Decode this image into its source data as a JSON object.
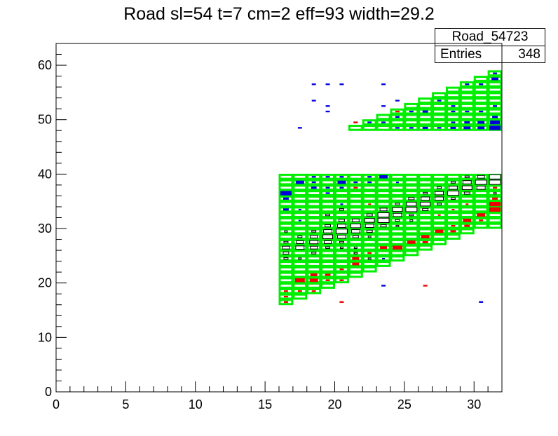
{
  "chart_data": {
    "type": "heatmap",
    "title": "Road sl=54 t=7 cm=2 eff=93 width=29.2",
    "stats_box": {
      "name": "Road_54723",
      "entries_label": "Entries",
      "entries_value": "348"
    },
    "xlim": [
      0,
      32
    ],
    "ylim": [
      0,
      64
    ],
    "x_ticks": [
      "0",
      "5",
      "10",
      "15",
      "20",
      "25",
      "30"
    ],
    "y_ticks": [
      "0",
      "10",
      "20",
      "30",
      "40",
      "50",
      "60"
    ],
    "grid": false,
    "colors": {
      "road": "#00ee00",
      "blue": "#0000dd",
      "red": "#ee0000",
      "box": "#000000"
    },
    "road_upper": {
      "y_top": 59,
      "columns": [
        {
          "x": 21,
          "y_bottom": 48
        },
        {
          "x": 22,
          "y_bottom": 48
        },
        {
          "x": 23,
          "y_bottom": 48
        },
        {
          "x": 24,
          "y_bottom": 48
        },
        {
          "x": 25,
          "y_bottom": 48
        },
        {
          "x": 26,
          "y_bottom": 48
        },
        {
          "x": 27,
          "y_bottom": 48
        },
        {
          "x": 28,
          "y_bottom": 48
        },
        {
          "x": 29,
          "y_bottom": 48
        },
        {
          "x": 30,
          "y_bottom": 48
        },
        {
          "x": 31,
          "y_bottom": 48
        }
      ],
      "column_tops": [
        50,
        51,
        52,
        53,
        54,
        55,
        56,
        57,
        58,
        59,
        60
      ]
    },
    "road_lower": {
      "column_tops": [
        40,
        40,
        40,
        40,
        40,
        40,
        40,
        40,
        40,
        40,
        40,
        40,
        40,
        40,
        40,
        40
      ],
      "column_bottoms": [
        16,
        17,
        18,
        19,
        20,
        21,
        22,
        23,
        24,
        25,
        26,
        27,
        28,
        29,
        30,
        30
      ],
      "x_start": 16
    },
    "blue_hits": [
      [
        18.5,
        56.5,
        0.3
      ],
      [
        19.5,
        56.5,
        0.3
      ],
      [
        20.5,
        56.5,
        0.3
      ],
      [
        23.5,
        56.5,
        0.3
      ],
      [
        18.5,
        53.5,
        0.3
      ],
      [
        19.5,
        52.5,
        0.3
      ],
      [
        19.5,
        51.5,
        0.3
      ],
      [
        17.5,
        48.5,
        0.3
      ],
      [
        24.5,
        53.5,
        0.3
      ],
      [
        23.5,
        52.5,
        0.3
      ],
      [
        26.5,
        51.5,
        0.4
      ],
      [
        25.5,
        51.5,
        0.3
      ],
      [
        24.5,
        50.5,
        0.3
      ],
      [
        21.5,
        49.5,
        0.3
      ],
      [
        22.5,
        49.5,
        0.3
      ],
      [
        23.5,
        49.5,
        0.3
      ],
      [
        24.5,
        48.5,
        0.3
      ],
      [
        25.5,
        48.5,
        0.3
      ],
      [
        26.5,
        48.5,
        0.4
      ],
      [
        27.5,
        48.5,
        0.3
      ],
      [
        28.5,
        48.5,
        0.4
      ],
      [
        27.5,
        53.5,
        0.3
      ],
      [
        28.5,
        51.5,
        0.3
      ],
      [
        29.5,
        51.5,
        0.3
      ],
      [
        30.5,
        51.5,
        0.3
      ],
      [
        29.5,
        49.5,
        0.4
      ],
      [
        30.5,
        49.5,
        0.5
      ],
      [
        31.5,
        49.5,
        0.7
      ],
      [
        29.5,
        48.5,
        0.5
      ],
      [
        30.5,
        48.5,
        0.5
      ],
      [
        31.5,
        48.5,
        0.8
      ],
      [
        31.5,
        50.5,
        0.4
      ],
      [
        31.5,
        52.5,
        0.3
      ],
      [
        29.5,
        56.5,
        0.3
      ],
      [
        30.5,
        56.5,
        0.3
      ],
      [
        31.5,
        57.5,
        0.5
      ],
      [
        31.5,
        58.5,
        0.3
      ],
      [
        28.5,
        52.5,
        0.3
      ],
      [
        28.5,
        49.5,
        0.3
      ],
      [
        16.5,
        36.5,
        0.8
      ],
      [
        16.5,
        35.5,
        0.4
      ],
      [
        16.5,
        33.5,
        0.4
      ],
      [
        17.5,
        38.5,
        0.6
      ],
      [
        18.5,
        39.5,
        0.3
      ],
      [
        18.5,
        38.5,
        0.3
      ],
      [
        18.5,
        37.5,
        0.4
      ],
      [
        19.5,
        39.5,
        0.3
      ],
      [
        19.5,
        37.5,
        0.3
      ],
      [
        19.5,
        36.5,
        0.3
      ],
      [
        20.5,
        39.5,
        0.3
      ],
      [
        20.5,
        38.5,
        0.6
      ],
      [
        20.5,
        37.5,
        0.3
      ],
      [
        22.5,
        39.5,
        0.3
      ],
      [
        23.5,
        39.5,
        0.6
      ],
      [
        22.5,
        38.5,
        0.3
      ],
      [
        21.5,
        38.5,
        0.3
      ],
      [
        24.5,
        38.5,
        0.2
      ],
      [
        17.5,
        33.5,
        0.2
      ],
      [
        17.5,
        31.5,
        0.2
      ],
      [
        20.5,
        34.5,
        0.2
      ],
      [
        23.5,
        19.5,
        0.3
      ],
      [
        30.5,
        16.5,
        0.3
      ],
      [
        23.5,
        24.5,
        0.2
      ]
    ],
    "red_hits": [
      [
        16.5,
        18.5,
        0.3
      ],
      [
        16.5,
        17.5,
        0.3
      ],
      [
        16.5,
        16.5,
        0.3
      ],
      [
        17.5,
        20.5,
        0.7
      ],
      [
        17.5,
        18.5,
        0.3
      ],
      [
        18.5,
        21.5,
        0.5
      ],
      [
        18.5,
        20.5,
        0.6
      ],
      [
        18.5,
        18.5,
        0.3
      ],
      [
        19.5,
        21.5,
        0.4
      ],
      [
        19.5,
        20.5,
        0.3
      ],
      [
        20.5,
        22.5,
        0.3
      ],
      [
        20.5,
        20.5,
        0.3
      ],
      [
        20.5,
        16.5,
        0.3
      ],
      [
        21.5,
        23.5,
        0.5
      ],
      [
        21.5,
        24.5,
        0.5
      ],
      [
        21.5,
        25.5,
        0.3
      ],
      [
        22.5,
        25.5,
        0.3
      ],
      [
        23.5,
        26.5,
        0.5
      ],
      [
        24.5,
        26.5,
        0.7
      ],
      [
        25.5,
        27.5,
        0.6
      ],
      [
        26.5,
        28.5,
        0.6
      ],
      [
        26.5,
        27.5,
        0.4
      ],
      [
        27.5,
        29.5,
        0.6
      ],
      [
        28.5,
        29.5,
        0.4
      ],
      [
        28.5,
        30.5,
        0.3
      ],
      [
        29.5,
        31.5,
        0.6
      ],
      [
        29.5,
        30.5,
        0.4
      ],
      [
        30.5,
        32.5,
        0.6
      ],
      [
        30.5,
        31.5,
        0.3
      ],
      [
        31.5,
        34.5,
        0.8
      ],
      [
        31.5,
        33.5,
        0.8
      ],
      [
        31.5,
        35.5,
        0.4
      ],
      [
        31.5,
        37.5,
        0.3
      ],
      [
        21.5,
        37.5,
        0.3
      ],
      [
        26.5,
        19.5,
        0.3
      ],
      [
        22.5,
        34.5,
        0.2
      ],
      [
        21.5,
        49.5,
        0.3
      ],
      [
        24.5,
        51.5,
        0.3
      ],
      [
        29.5,
        34.5,
        0.2
      ],
      [
        28.5,
        33.5,
        0.2
      ],
      [
        27.5,
        32.5,
        0.2
      ],
      [
        30.5,
        37.5,
        0.2
      ],
      [
        28.5,
        35.5,
        0.2
      ]
    ],
    "box_hits": [
      [
        16.5,
        27.5,
        0.3
      ],
      [
        16.5,
        26.5,
        0.5
      ],
      [
        16.5,
        25.5,
        0.4
      ],
      [
        16.5,
        24.5,
        0.3
      ],
      [
        17.5,
        28.5,
        0.3
      ],
      [
        17.5,
        27.5,
        0.5
      ],
      [
        17.5,
        26.5,
        0.6
      ],
      [
        17.5,
        24.5,
        0.2
      ],
      [
        18.5,
        29.5,
        0.3
      ],
      [
        18.5,
        28.5,
        0.5
      ],
      [
        18.5,
        27.5,
        0.6
      ],
      [
        18.5,
        26.5,
        0.5
      ],
      [
        18.5,
        25.5,
        0.3
      ],
      [
        19.5,
        30.5,
        0.4
      ],
      [
        19.5,
        29.5,
        0.6
      ],
      [
        19.5,
        28.5,
        0.7
      ],
      [
        19.5,
        27.5,
        0.5
      ],
      [
        19.5,
        26.5,
        0.3
      ],
      [
        20.5,
        31.5,
        0.4
      ],
      [
        20.5,
        30.5,
        0.6
      ],
      [
        20.5,
        29.5,
        0.8
      ],
      [
        20.5,
        28.5,
        0.6
      ],
      [
        20.5,
        27.5,
        0.3
      ],
      [
        20.5,
        26.5,
        0.2
      ],
      [
        21.5,
        31.5,
        0.5
      ],
      [
        21.5,
        30.5,
        0.7
      ],
      [
        21.5,
        29.5,
        0.6
      ],
      [
        21.5,
        28.5,
        0.4
      ],
      [
        21.5,
        26.5,
        0.2
      ],
      [
        22.5,
        32.5,
        0.4
      ],
      [
        22.5,
        31.5,
        0.7
      ],
      [
        22.5,
        30.5,
        0.6
      ],
      [
        22.5,
        29.5,
        0.4
      ],
      [
        22.5,
        28.5,
        0.2
      ],
      [
        23.5,
        33.5,
        0.5
      ],
      [
        23.5,
        32.5,
        0.8
      ],
      [
        23.5,
        31.5,
        0.8
      ],
      [
        23.5,
        30.5,
        0.4
      ],
      [
        24.5,
        34.5,
        0.3
      ],
      [
        24.5,
        33.5,
        0.7
      ],
      [
        24.5,
        32.5,
        0.6
      ],
      [
        24.5,
        31.5,
        0.3
      ],
      [
        25.5,
        35.5,
        0.4
      ],
      [
        25.5,
        34.5,
        0.7
      ],
      [
        25.5,
        33.5,
        0.8
      ],
      [
        25.5,
        32.5,
        0.3
      ],
      [
        26.5,
        36.5,
        0.3
      ],
      [
        26.5,
        35.5,
        0.6
      ],
      [
        26.5,
        34.5,
        0.7
      ],
      [
        26.5,
        33.5,
        0.4
      ],
      [
        27.5,
        37.5,
        0.3
      ],
      [
        27.5,
        36.5,
        0.6
      ],
      [
        27.5,
        35.5,
        0.6
      ],
      [
        27.5,
        34.5,
        0.3
      ],
      [
        28.5,
        38.5,
        0.3
      ],
      [
        28.5,
        37.5,
        0.6
      ],
      [
        28.5,
        36.5,
        0.8
      ],
      [
        28.5,
        35.5,
        0.3
      ],
      [
        29.5,
        39.5,
        0.3
      ],
      [
        29.5,
        38.5,
        0.6
      ],
      [
        29.5,
        37.5,
        0.7
      ],
      [
        29.5,
        36.5,
        0.4
      ],
      [
        30.5,
        39.5,
        0.5
      ],
      [
        30.5,
        38.5,
        0.8
      ],
      [
        30.5,
        37.5,
        0.6
      ],
      [
        31.5,
        39.5,
        0.8
      ],
      [
        31.5,
        38.5,
        0.8
      ],
      [
        31.5,
        36.5,
        0.2
      ],
      [
        16.5,
        29.5,
        0.2
      ],
      [
        19.5,
        32.5,
        0.3
      ],
      [
        20.5,
        33.5,
        0.3
      ],
      [
        22.5,
        24.5,
        0.2
      ],
      [
        21.5,
        25.5,
        0.2
      ],
      [
        24.5,
        30.5,
        0.2
      ],
      [
        25.5,
        31.5,
        0.2
      ]
    ]
  }
}
